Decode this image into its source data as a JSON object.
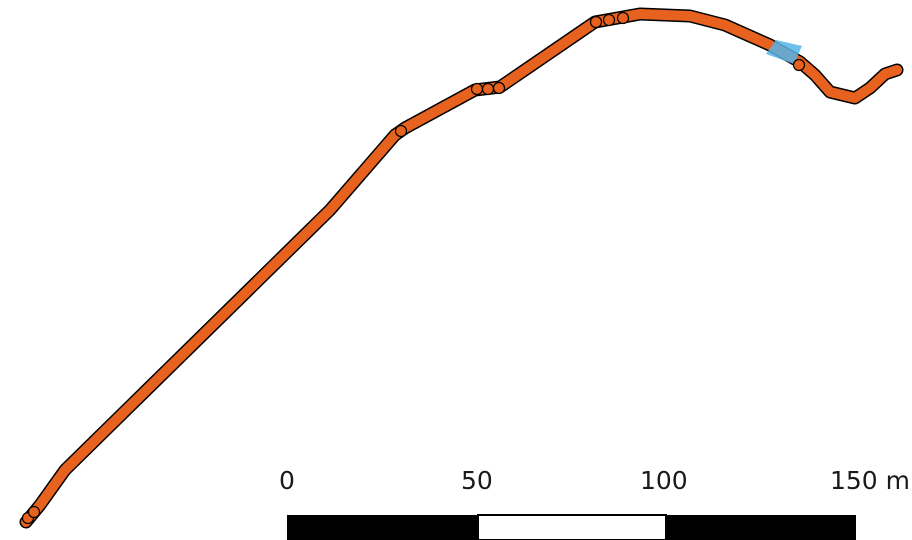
{
  "map": {
    "route_color": "#e8621f",
    "route_outline_color": "#000000",
    "highlight_color": "#56b4e9",
    "background": "#ffffff"
  },
  "scale_bar": {
    "labels": [
      "0",
      "50",
      "100",
      "150 m"
    ],
    "unit": "m",
    "segment_colors": [
      "#000000",
      "#ffffff",
      "#000000"
    ]
  }
}
